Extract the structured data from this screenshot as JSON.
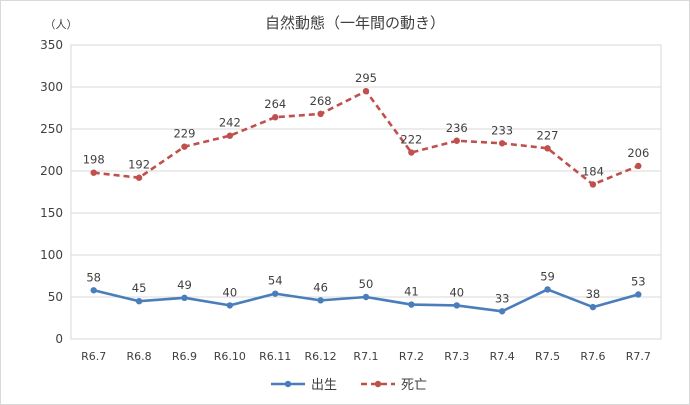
{
  "chart_data": {
    "type": "line",
    "title": "自然動態（一年間の動き）",
    "unit_label": "（人）",
    "categories": [
      "R6.7",
      "R6.8",
      "R6.9",
      "R6.10",
      "R6.11",
      "R6.12",
      "R7.1",
      "R7.2",
      "R7.3",
      "R7.4",
      "R7.5",
      "R7.6",
      "R7.7"
    ],
    "y_ticks": [
      "0",
      "50",
      "100",
      "150",
      "200",
      "250",
      "300",
      "350"
    ],
    "ylim": [
      0,
      350
    ],
    "grid": true,
    "legend_position": "bottom",
    "series": [
      {
        "name": "出生",
        "color": "#4a7ebb",
        "style": "solid",
        "values": [
          58,
          45,
          49,
          40,
          54,
          46,
          50,
          41,
          40,
          33,
          59,
          38,
          53
        ]
      },
      {
        "name": "死亡",
        "color": "#c0504d",
        "style": "dashed",
        "values": [
          198,
          192,
          229,
          242,
          264,
          268,
          295,
          222,
          236,
          233,
          227,
          184,
          206
        ]
      }
    ]
  }
}
